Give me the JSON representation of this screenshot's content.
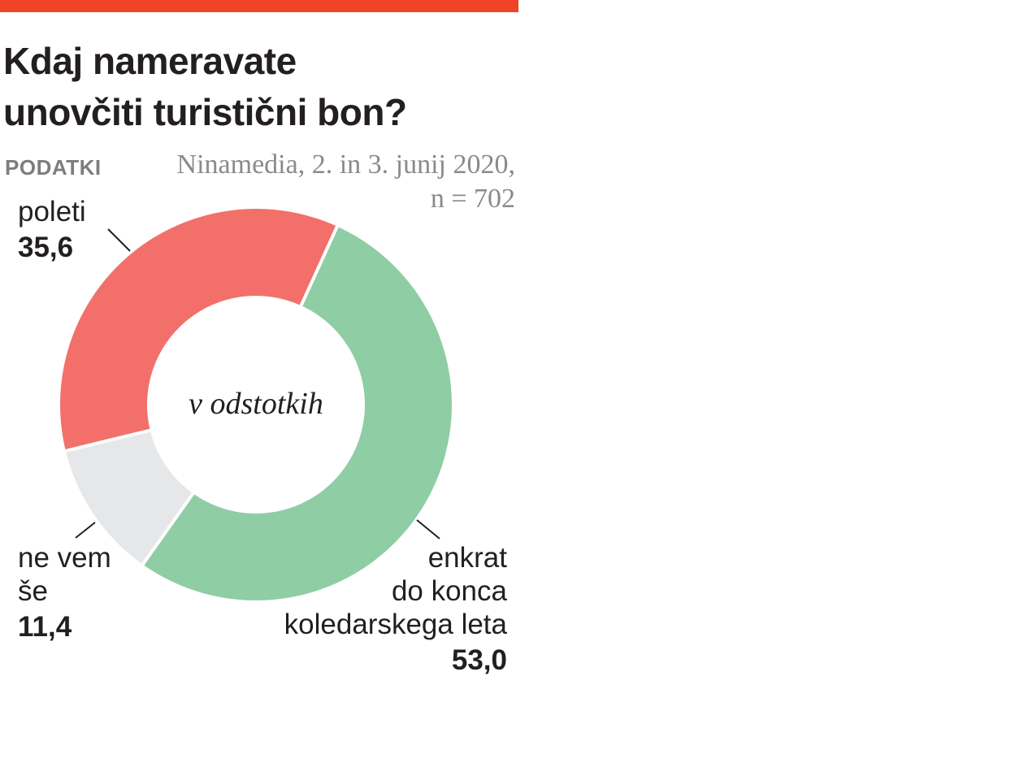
{
  "header": {
    "title_lines": [
      "Kdaj nameravate",
      "unovčiti turistični bon?"
    ],
    "source_label": "PODATKI",
    "source_text": "Ninamedia, 2. in 3. junij 2020,",
    "source_n": "n = 702",
    "accent_color": "#ef4426"
  },
  "chart_data": {
    "type": "pie",
    "style": "donut",
    "unit_note": "v odstotkih",
    "slices": [
      {
        "label": "enkrat\ndo konca\nkoledarskega leta",
        "value": 53.0,
        "value_text": "53,0",
        "color": "#8fcda5"
      },
      {
        "label": "ne vem\nše",
        "value": 11.4,
        "value_text": "11,4",
        "color": "#e6e7e8"
      },
      {
        "label": "poleti",
        "value": 35.6,
        "value_text": "35,6",
        "color": "#f3706a"
      }
    ]
  }
}
